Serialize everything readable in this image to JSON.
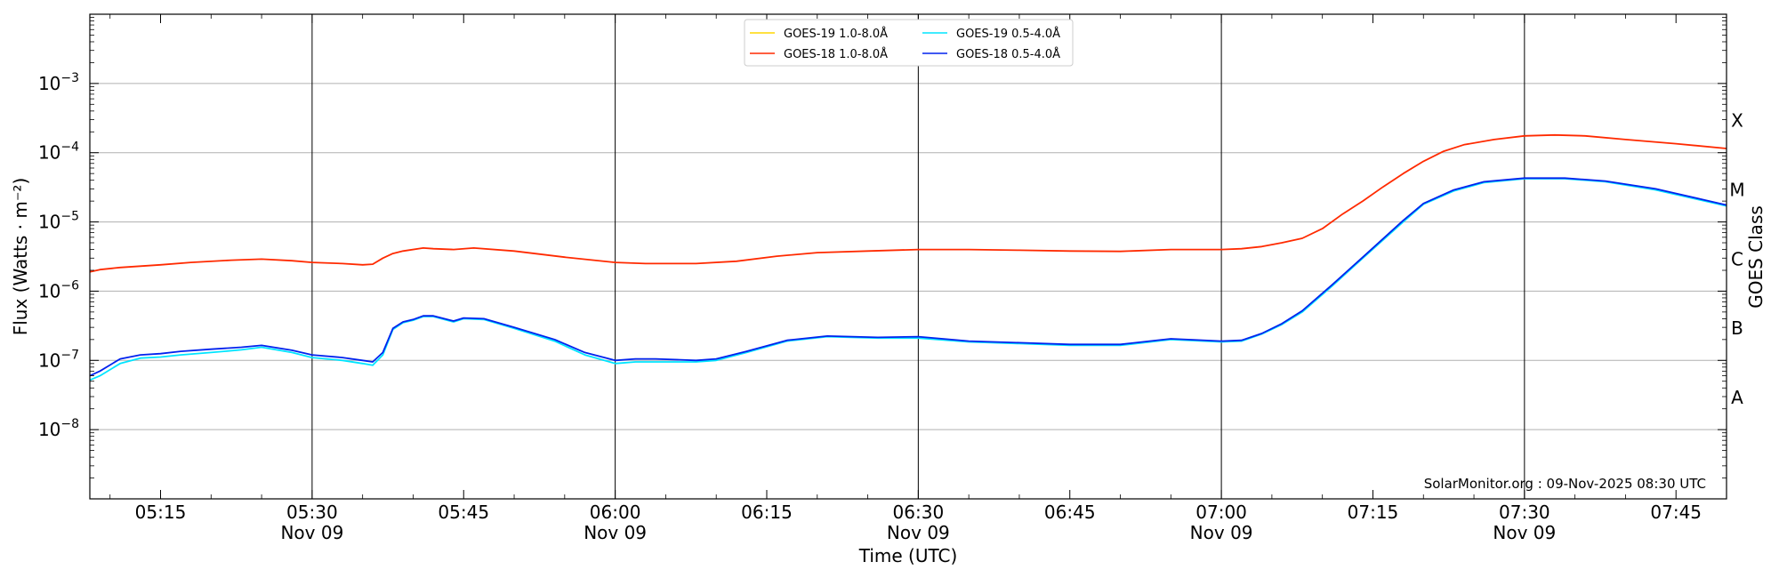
{
  "chart_data": {
    "type": "line",
    "xlabel": "Time (UTC)",
    "ylabel": "Flux (Watts · m⁻²)",
    "ylabel_right": "GOES Class",
    "yscale": "log",
    "ylim": [
      1e-09,
      0.01
    ],
    "xlim": [
      "05:08",
      "07:50"
    ],
    "y_ticks": [
      {
        "value": 1e-08,
        "base": "10",
        "exp": "−8"
      },
      {
        "value": 1e-07,
        "base": "10",
        "exp": "−7"
      },
      {
        "value": 1e-06,
        "base": "10",
        "exp": "−6"
      },
      {
        "value": 1e-05,
        "base": "10",
        "exp": "−5"
      },
      {
        "value": 0.0001,
        "base": "10",
        "exp": "−4"
      },
      {
        "value": 0.001,
        "base": "10",
        "exp": "−3"
      }
    ],
    "x_ticks": [
      {
        "time": "05:15",
        "label": "05:15",
        "sublabel": ""
      },
      {
        "time": "05:30",
        "label": "05:30",
        "sublabel": "Nov 09"
      },
      {
        "time": "05:45",
        "label": "05:45",
        "sublabel": ""
      },
      {
        "time": "06:00",
        "label": "06:00",
        "sublabel": "Nov 09"
      },
      {
        "time": "06:15",
        "label": "06:15",
        "sublabel": ""
      },
      {
        "time": "06:30",
        "label": "06:30",
        "sublabel": "Nov 09"
      },
      {
        "time": "06:45",
        "label": "06:45",
        "sublabel": ""
      },
      {
        "time": "07:00",
        "label": "07:00",
        "sublabel": "Nov 09"
      },
      {
        "time": "07:15",
        "label": "07:15",
        "sublabel": ""
      },
      {
        "time": "07:30",
        "label": "07:30",
        "sublabel": "Nov 09"
      },
      {
        "time": "07:45",
        "label": "07:45",
        "sublabel": ""
      }
    ],
    "vertical_lines": [
      "05:30",
      "06:00",
      "06:30",
      "07:00",
      "07:30"
    ],
    "goes_classes": [
      {
        "label": "A",
        "value": 3e-08
      },
      {
        "label": "B",
        "value": 3e-07
      },
      {
        "label": "C",
        "value": 3e-06
      },
      {
        "label": "M",
        "value": 3e-05
      },
      {
        "label": "X",
        "value": 0.0003
      }
    ],
    "grid": "horizontal at decades",
    "legend_position": "top-center",
    "annotation": "SolarMonitor.org : 09-Nov-2025 08:30 UTC",
    "series": [
      {
        "name": "GOES-19 1.0-8.0Å",
        "color": "#ffd700",
        "draw_line": false,
        "x": [],
        "y": []
      },
      {
        "name": "GOES-19 0.5-4.0Å",
        "color": "#00e5ff",
        "x": [
          "05:08",
          "05:09",
          "05:11",
          "05:13",
          "05:15",
          "05:17",
          "05:20",
          "05:23",
          "05:25",
          "05:28",
          "05:30",
          "05:33",
          "05:35",
          "05:36",
          "05:37",
          "05:38",
          "05:39",
          "05:40",
          "05:41",
          "05:42",
          "05:44",
          "05:45",
          "05:47",
          "05:50",
          "05:54",
          "05:57",
          "06:00",
          "06:02",
          "06:04",
          "06:08",
          "06:10",
          "06:13",
          "06:17",
          "06:21",
          "06:26",
          "06:30",
          "06:35",
          "06:40",
          "06:45",
          "06:50",
          "06:55",
          "07:00",
          "07:02",
          "07:04",
          "07:06",
          "07:08",
          "07:11",
          "07:14",
          "07:18",
          "07:20",
          "07:23",
          "07:26",
          "07:30",
          "07:34",
          "07:38",
          "07:43",
          "07:50"
        ],
        "y": [
          5.2e-08,
          6e-08,
          9e-08,
          1.08e-07,
          1.12e-07,
          1.2e-07,
          1.3e-07,
          1.42e-07,
          1.55e-07,
          1.3e-07,
          1.1e-07,
          1e-07,
          9e-08,
          8.5e-08,
          1.2e-07,
          2.8e-07,
          3.5e-07,
          3.8e-07,
          4.3e-07,
          4.3e-07,
          3.6e-07,
          4e-07,
          3.9e-07,
          2.9e-07,
          1.9e-07,
          1.2e-07,
          9e-08,
          9.5e-08,
          9.5e-08,
          9.5e-08,
          1e-07,
          1.3e-07,
          1.9e-07,
          2.2e-07,
          2.1e-07,
          2.1e-07,
          1.85e-07,
          1.75e-07,
          1.65e-07,
          1.65e-07,
          2e-07,
          1.85e-07,
          1.9e-07,
          2.4e-07,
          3.3e-07,
          5e-07,
          1.2e-06,
          3e-06,
          1e-05,
          1.8e-05,
          2.8e-05,
          3.7e-05,
          4.2e-05,
          4.2e-05,
          3.8e-05,
          2.9e-05,
          1.7e-05
        ]
      },
      {
        "name": "GOES-18 1.0-8.0Å",
        "color": "#ff2a00",
        "x": [
          "05:08",
          "05:09",
          "05:11",
          "05:13",
          "05:15",
          "05:18",
          "05:22",
          "05:25",
          "05:28",
          "05:30",
          "05:33",
          "05:35",
          "05:36",
          "05:37",
          "05:38",
          "05:39",
          "05:41",
          "05:42",
          "05:44",
          "05:46",
          "05:50",
          "05:55",
          "06:00",
          "06:03",
          "06:05",
          "06:08",
          "06:12",
          "06:16",
          "06:20",
          "06:25",
          "06:30",
          "06:35",
          "06:40",
          "06:45",
          "06:50",
          "06:55",
          "07:00",
          "07:02",
          "07:04",
          "07:06",
          "07:08",
          "07:10",
          "07:12",
          "07:14",
          "07:16",
          "07:18",
          "07:20",
          "07:22",
          "07:24",
          "07:27",
          "07:30",
          "07:33",
          "07:36",
          "07:40",
          "07:45",
          "07:50"
        ],
        "y": [
          1.9e-06,
          2.05e-06,
          2.2e-06,
          2.3e-06,
          2.4e-06,
          2.6e-06,
          2.8e-06,
          2.9e-06,
          2.75e-06,
          2.6e-06,
          2.5e-06,
          2.4e-06,
          2.45e-06,
          3e-06,
          3.5e-06,
          3.8e-06,
          4.2e-06,
          4.1e-06,
          4e-06,
          4.2e-06,
          3.8e-06,
          3.1e-06,
          2.6e-06,
          2.5e-06,
          2.5e-06,
          2.5e-06,
          2.7e-06,
          3.2e-06,
          3.6e-06,
          3.8e-06,
          4e-06,
          4e-06,
          3.9e-06,
          3.8e-06,
          3.75e-06,
          4e-06,
          4e-06,
          4.1e-06,
          4.4e-06,
          5e-06,
          5.8e-06,
          8e-06,
          1.3e-05,
          2e-05,
          3.2e-05,
          5e-05,
          7.5e-05,
          0.000105,
          0.00013,
          0.000155,
          0.000175,
          0.00018,
          0.000175,
          0.000155,
          0.000135,
          0.000115
        ]
      },
      {
        "name": "GOES-18 0.5-4.0Å",
        "color": "#0022ee",
        "x": [
          "05:08",
          "05:09",
          "05:11",
          "05:13",
          "05:15",
          "05:17",
          "05:20",
          "05:23",
          "05:25",
          "05:28",
          "05:30",
          "05:33",
          "05:35",
          "05:36",
          "05:37",
          "05:38",
          "05:39",
          "05:40",
          "05:41",
          "05:42",
          "05:44",
          "05:45",
          "05:47",
          "05:50",
          "05:54",
          "05:57",
          "06:00",
          "06:02",
          "06:04",
          "06:08",
          "06:10",
          "06:13",
          "06:17",
          "06:21",
          "06:26",
          "06:30",
          "06:35",
          "06:40",
          "06:45",
          "06:50",
          "06:55",
          "07:00",
          "07:02",
          "07:04",
          "07:06",
          "07:08",
          "07:11",
          "07:14",
          "07:18",
          "07:20",
          "07:23",
          "07:26",
          "07:30",
          "07:34",
          "07:38",
          "07:43",
          "07:50"
        ],
        "y": [
          6e-08,
          7e-08,
          1.05e-07,
          1.2e-07,
          1.25e-07,
          1.35e-07,
          1.45e-07,
          1.55e-07,
          1.65e-07,
          1.4e-07,
          1.2e-07,
          1.1e-07,
          1e-07,
          9.5e-08,
          1.3e-07,
          2.9e-07,
          3.6e-07,
          3.9e-07,
          4.4e-07,
          4.4e-07,
          3.7e-07,
          4.1e-07,
          4e-07,
          3e-07,
          2e-07,
          1.3e-07,
          1e-07,
          1.05e-07,
          1.05e-07,
          1e-07,
          1.05e-07,
          1.35e-07,
          1.95e-07,
          2.25e-07,
          2.15e-07,
          2.2e-07,
          1.9e-07,
          1.8e-07,
          1.7e-07,
          1.7e-07,
          2.05e-07,
          1.9e-07,
          1.95e-07,
          2.45e-07,
          3.4e-07,
          5.2e-07,
          1.25e-06,
          3.1e-06,
          1.05e-05,
          1.85e-05,
          2.9e-05,
          3.8e-05,
          4.3e-05,
          4.3e-05,
          3.9e-05,
          3e-05,
          1.75e-05
        ]
      }
    ]
  }
}
